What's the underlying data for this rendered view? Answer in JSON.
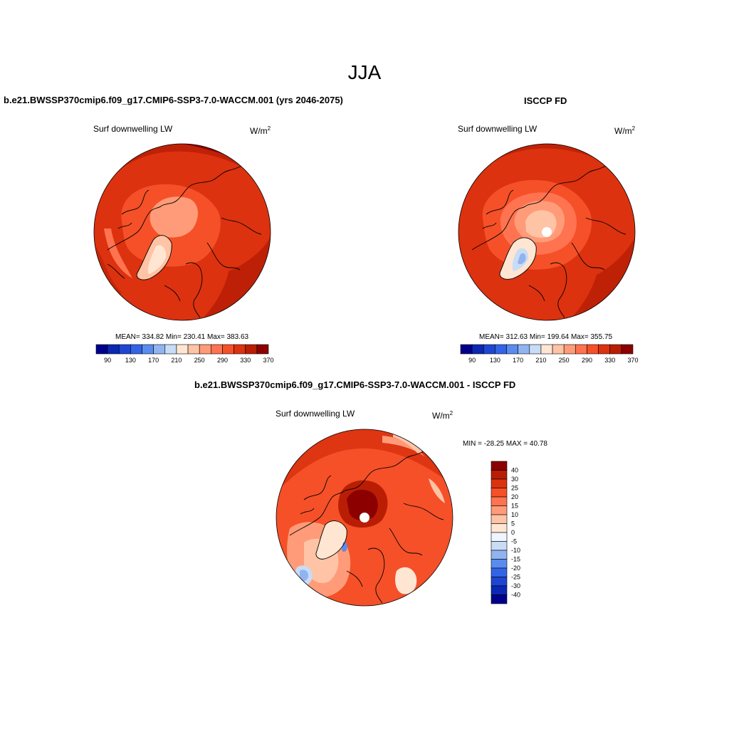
{
  "figure": {
    "season": "JJA"
  },
  "palette": {
    "abs_fill_colors": [
      "#00008c",
      "#0a28b4",
      "#1e46d2",
      "#3264e6",
      "#5a8cf0",
      "#91b4f0",
      "#c8dcf5",
      "#ffe6d2",
      "#ffc3a5",
      "#ff9b78",
      "#ff7350",
      "#f55028",
      "#dc3210",
      "#b91e05",
      "#8c0000"
    ],
    "diff_fill_colors": [
      "#00008c",
      "#0a28b4",
      "#1e46d2",
      "#3264e6",
      "#5a8cf0",
      "#91b4f0",
      "#c8dcf5",
      "#f0f5ff",
      "#ffe6d2",
      "#ffc3a5",
      "#ff9b78",
      "#ff7350",
      "#f55028",
      "#dc3210",
      "#b91e05",
      "#8c0000"
    ],
    "coastline": "#000000"
  },
  "panels": [
    {
      "id": "model",
      "title": "b.e21.BWSSP370cmip6.f09_g17.CMIP6-SSP3-7.0-WACCM.001 (yrs 2046-2075)",
      "variable": "Surf downwelling LW",
      "units_base": "W/m",
      "units_exp": "2",
      "stats": "MEAN= 334.82  Min= 230.41  Max= 383.63",
      "colorbar_labels": [
        "90",
        "130",
        "170",
        "210",
        "250",
        "290",
        "330",
        "370"
      ],
      "projection": "north-polar-stereographic",
      "missing_pole": false
    },
    {
      "id": "obs",
      "title": "ISCCP FD",
      "variable": "Surf downwelling LW",
      "units_base": "W/m",
      "units_exp": "2",
      "stats": "MEAN= 312.63  Min= 199.64  Max= 355.75",
      "colorbar_labels": [
        "90",
        "130",
        "170",
        "210",
        "250",
        "290",
        "330",
        "370"
      ],
      "projection": "north-polar-stereographic",
      "missing_pole": true
    },
    {
      "id": "diff",
      "title": "b.e21.BWSSP370cmip6.f09_g17.CMIP6-SSP3-7.0-WACCM.001 - ISCCP FD",
      "variable": "Surf downwelling LW",
      "units_base": "W/m",
      "units_exp": "2",
      "stats": "MIN = -28.25 MAX =  40.78",
      "colorbar_labels": [
        "40",
        "30",
        "25",
        "20",
        "15",
        "10",
        "5",
        "0",
        "-5",
        "-10",
        "-15",
        "-20",
        "-25",
        "-30",
        "-40"
      ],
      "projection": "north-polar-stereographic",
      "missing_pole": true
    }
  ]
}
